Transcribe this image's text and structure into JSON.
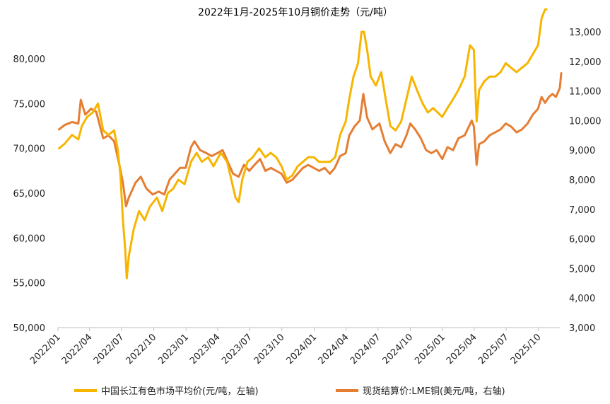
{
  "chart_data": {
    "type": "line",
    "title": "2022年1月-2025年10月铜价走势（元/吨）",
    "x_tick_labels": [
      "2022/01",
      "2022/04",
      "2022/07",
      "2022/10",
      "2023/01",
      "2023/04",
      "2023/07",
      "2023/10",
      "2024/01",
      "2024/04",
      "2024/07",
      "2024/10",
      "2025/01",
      "2025/04",
      "2025/07",
      "2025/10"
    ],
    "x_range": [
      "2022-01",
      "2025-12"
    ],
    "y_left": {
      "ylim": [
        50000,
        83000
      ],
      "ticks": [
        "50,000",
        "55,000",
        "60,000",
        "65,000",
        "70,000",
        "75,000",
        "80,000"
      ]
    },
    "y_right": {
      "ylim": [
        3000,
        13000
      ],
      "ticks": [
        "3,000",
        "4,000",
        "5,000",
        "6,000",
        "7,000",
        "8,000",
        "9,000",
        "10,000",
        "11,000",
        "12,000",
        "13,000"
      ]
    },
    "grid": false,
    "legend_position": "bottom",
    "series": [
      {
        "name": "中国长江有色市场平均价(元/吨，左轴)",
        "axis": "left",
        "color": "#F7B500",
        "points": [
          [
            "2022-01-04",
            70000
          ],
          [
            "2022-01-20",
            70500
          ],
          [
            "2022-02-10",
            71500
          ],
          [
            "2022-02-28",
            71000
          ],
          [
            "2022-03-10",
            72500
          ],
          [
            "2022-03-25",
            73500
          ],
          [
            "2022-04-10",
            74000
          ],
          [
            "2022-04-25",
            75000
          ],
          [
            "2022-05-10",
            72000
          ],
          [
            "2022-05-25",
            71500
          ],
          [
            "2022-06-10",
            72000
          ],
          [
            "2022-06-20",
            70000
          ],
          [
            "2022-06-28",
            67000
          ],
          [
            "2022-07-05",
            62000
          ],
          [
            "2022-07-12",
            58500
          ],
          [
            "2022-07-16",
            55500
          ],
          [
            "2022-07-22",
            58000
          ],
          [
            "2022-08-05",
            61000
          ],
          [
            "2022-08-20",
            63000
          ],
          [
            "2022-09-05",
            62000
          ],
          [
            "2022-09-20",
            63500
          ],
          [
            "2022-10-10",
            64500
          ],
          [
            "2022-10-25",
            63000
          ],
          [
            "2022-11-10",
            65000
          ],
          [
            "2022-11-25",
            65500
          ],
          [
            "2022-12-10",
            66500
          ],
          [
            "2022-12-28",
            66000
          ],
          [
            "2023-01-15",
            68500
          ],
          [
            "2023-01-31",
            69500
          ],
          [
            "2023-02-15",
            68500
          ],
          [
            "2023-03-05",
            69000
          ],
          [
            "2023-03-20",
            68000
          ],
          [
            "2023-04-10",
            69500
          ],
          [
            "2023-04-28",
            68500
          ],
          [
            "2023-05-10",
            66500
          ],
          [
            "2023-05-22",
            64500
          ],
          [
            "2023-05-31",
            64000
          ],
          [
            "2023-06-10",
            66500
          ],
          [
            "2023-06-25",
            68500
          ],
          [
            "2023-07-10",
            69000
          ],
          [
            "2023-07-28",
            70000
          ],
          [
            "2023-08-15",
            69000
          ],
          [
            "2023-08-30",
            69500
          ],
          [
            "2023-09-15",
            69000
          ],
          [
            "2023-09-30",
            68000
          ],
          [
            "2023-10-15",
            66500
          ],
          [
            "2023-10-31",
            67000
          ],
          [
            "2023-11-15",
            68000
          ],
          [
            "2023-11-30",
            68500
          ],
          [
            "2023-12-15",
            69000
          ],
          [
            "2023-12-31",
            69000
          ],
          [
            "2024-01-15",
            68500
          ],
          [
            "2024-01-31",
            68500
          ],
          [
            "2024-02-15",
            68500
          ],
          [
            "2024-03-01",
            69000
          ],
          [
            "2024-03-15",
            71500
          ],
          [
            "2024-03-31",
            73000
          ],
          [
            "2024-04-10",
            75500
          ],
          [
            "2024-04-22",
            78000
          ],
          [
            "2024-05-05",
            79500
          ],
          [
            "2024-05-15",
            83000
          ],
          [
            "2024-05-22",
            83000
          ],
          [
            "2024-05-31",
            81000
          ],
          [
            "2024-06-10",
            78000
          ],
          [
            "2024-06-25",
            77000
          ],
          [
            "2024-07-10",
            78500
          ],
          [
            "2024-07-25",
            75000
          ],
          [
            "2024-08-05",
            72500
          ],
          [
            "2024-08-20",
            72000
          ],
          [
            "2024-09-05",
            73000
          ],
          [
            "2024-09-20",
            75500
          ],
          [
            "2024-10-05",
            78000
          ],
          [
            "2024-10-20",
            76500
          ],
          [
            "2024-11-05",
            75000
          ],
          [
            "2024-11-20",
            74000
          ],
          [
            "2024-12-05",
            74500
          ],
          [
            "2024-12-31",
            73500
          ],
          [
            "2025-01-15",
            74500
          ],
          [
            "2025-01-31",
            75500
          ],
          [
            "2025-02-15",
            76500
          ],
          [
            "2025-03-05",
            78000
          ],
          [
            "2025-03-20",
            81500
          ],
          [
            "2025-03-31",
            81000
          ],
          [
            "2025-04-08",
            73000
          ],
          [
            "2025-04-15",
            76500
          ],
          [
            "2025-04-30",
            77500
          ],
          [
            "2025-05-15",
            78000
          ],
          [
            "2025-05-31",
            78000
          ],
          [
            "2025-06-15",
            78500
          ],
          [
            "2025-06-30",
            79500
          ],
          [
            "2025-07-15",
            79000
          ],
          [
            "2025-07-31",
            78500
          ],
          [
            "2025-08-15",
            79000
          ],
          [
            "2025-08-31",
            79500
          ],
          [
            "2025-09-15",
            80500
          ],
          [
            "2025-09-30",
            81500
          ],
          [
            "2025-10-10",
            84500
          ],
          [
            "2025-10-20",
            85500
          ],
          [
            "2025-10-24",
            85500
          ]
        ]
      },
      {
        "name": "现货结算价:LME铜(美元/吨，右轴)",
        "axis": "right",
        "color": "#E57E33",
        "points": [
          [
            "2022-01-04",
            9700
          ],
          [
            "2022-01-20",
            9850
          ],
          [
            "2022-02-10",
            9950
          ],
          [
            "2022-02-28",
            9900
          ],
          [
            "2022-03-07",
            10700
          ],
          [
            "2022-03-20",
            10200
          ],
          [
            "2022-04-05",
            10400
          ],
          [
            "2022-04-20",
            10300
          ],
          [
            "2022-05-10",
            9400
          ],
          [
            "2022-05-25",
            9500
          ],
          [
            "2022-06-10",
            9300
          ],
          [
            "2022-06-25",
            8500
          ],
          [
            "2022-07-05",
            7900
          ],
          [
            "2022-07-14",
            7100
          ],
          [
            "2022-07-22",
            7400
          ],
          [
            "2022-08-10",
            7900
          ],
          [
            "2022-08-25",
            8100
          ],
          [
            "2022-09-10",
            7700
          ],
          [
            "2022-09-28",
            7500
          ],
          [
            "2022-10-15",
            7600
          ],
          [
            "2022-10-31",
            7500
          ],
          [
            "2022-11-15",
            8000
          ],
          [
            "2022-11-30",
            8200
          ],
          [
            "2022-12-15",
            8400
          ],
          [
            "2022-12-31",
            8400
          ],
          [
            "2023-01-15",
            9100
          ],
          [
            "2023-01-25",
            9300
          ],
          [
            "2023-02-10",
            9000
          ],
          [
            "2023-02-28",
            8900
          ],
          [
            "2023-03-15",
            8800
          ],
          [
            "2023-03-31",
            8900
          ],
          [
            "2023-04-15",
            9000
          ],
          [
            "2023-04-30",
            8600
          ],
          [
            "2023-05-15",
            8200
          ],
          [
            "2023-05-31",
            8100
          ],
          [
            "2023-06-15",
            8500
          ],
          [
            "2023-06-30",
            8300
          ],
          [
            "2023-07-15",
            8500
          ],
          [
            "2023-07-31",
            8700
          ],
          [
            "2023-08-15",
            8300
          ],
          [
            "2023-08-31",
            8400
          ],
          [
            "2023-09-15",
            8300
          ],
          [
            "2023-09-30",
            8200
          ],
          [
            "2023-10-15",
            7900
          ],
          [
            "2023-10-31",
            8000
          ],
          [
            "2023-11-15",
            8200
          ],
          [
            "2023-11-30",
            8400
          ],
          [
            "2023-12-15",
            8500
          ],
          [
            "2023-12-31",
            8400
          ],
          [
            "2024-01-15",
            8300
          ],
          [
            "2024-01-31",
            8400
          ],
          [
            "2024-02-15",
            8200
          ],
          [
            "2024-02-29",
            8400
          ],
          [
            "2024-03-15",
            8800
          ],
          [
            "2024-03-31",
            8900
          ],
          [
            "2024-04-10",
            9500
          ],
          [
            "2024-04-25",
            9800
          ],
          [
            "2024-05-10",
            10000
          ],
          [
            "2024-05-20",
            10900
          ],
          [
            "2024-05-31",
            10100
          ],
          [
            "2024-06-15",
            9700
          ],
          [
            "2024-07-05",
            9900
          ],
          [
            "2024-07-20",
            9300
          ],
          [
            "2024-08-05",
            8900
          ],
          [
            "2024-08-20",
            9200
          ],
          [
            "2024-09-05",
            9100
          ],
          [
            "2024-09-20",
            9500
          ],
          [
            "2024-10-01",
            9900
          ],
          [
            "2024-10-15",
            9700
          ],
          [
            "2024-10-31",
            9400
          ],
          [
            "2024-11-15",
            9000
          ],
          [
            "2024-11-30",
            8900
          ],
          [
            "2024-12-15",
            9000
          ],
          [
            "2024-12-31",
            8700
          ],
          [
            "2025-01-15",
            9100
          ],
          [
            "2025-01-31",
            9000
          ],
          [
            "2025-02-15",
            9400
          ],
          [
            "2025-03-05",
            9500
          ],
          [
            "2025-03-25",
            10000
          ],
          [
            "2025-03-31",
            9800
          ],
          [
            "2025-04-08",
            8500
          ],
          [
            "2025-04-15",
            9200
          ],
          [
            "2025-04-30",
            9300
          ],
          [
            "2025-05-15",
            9500
          ],
          [
            "2025-05-31",
            9600
          ],
          [
            "2025-06-15",
            9700
          ],
          [
            "2025-06-30",
            9900
          ],
          [
            "2025-07-15",
            9800
          ],
          [
            "2025-07-31",
            9600
          ],
          [
            "2025-08-15",
            9700
          ],
          [
            "2025-08-31",
            9900
          ],
          [
            "2025-09-15",
            10200
          ],
          [
            "2025-09-30",
            10400
          ],
          [
            "2025-10-10",
            10800
          ],
          [
            "2025-10-20",
            10600
          ],
          [
            "2025-10-31",
            10800
          ],
          [
            "2025-11-10",
            10900
          ],
          [
            "2025-11-20",
            10800
          ],
          [
            "2025-12-01",
            11100
          ],
          [
            "2025-12-05",
            11600
          ]
        ]
      }
    ]
  }
}
